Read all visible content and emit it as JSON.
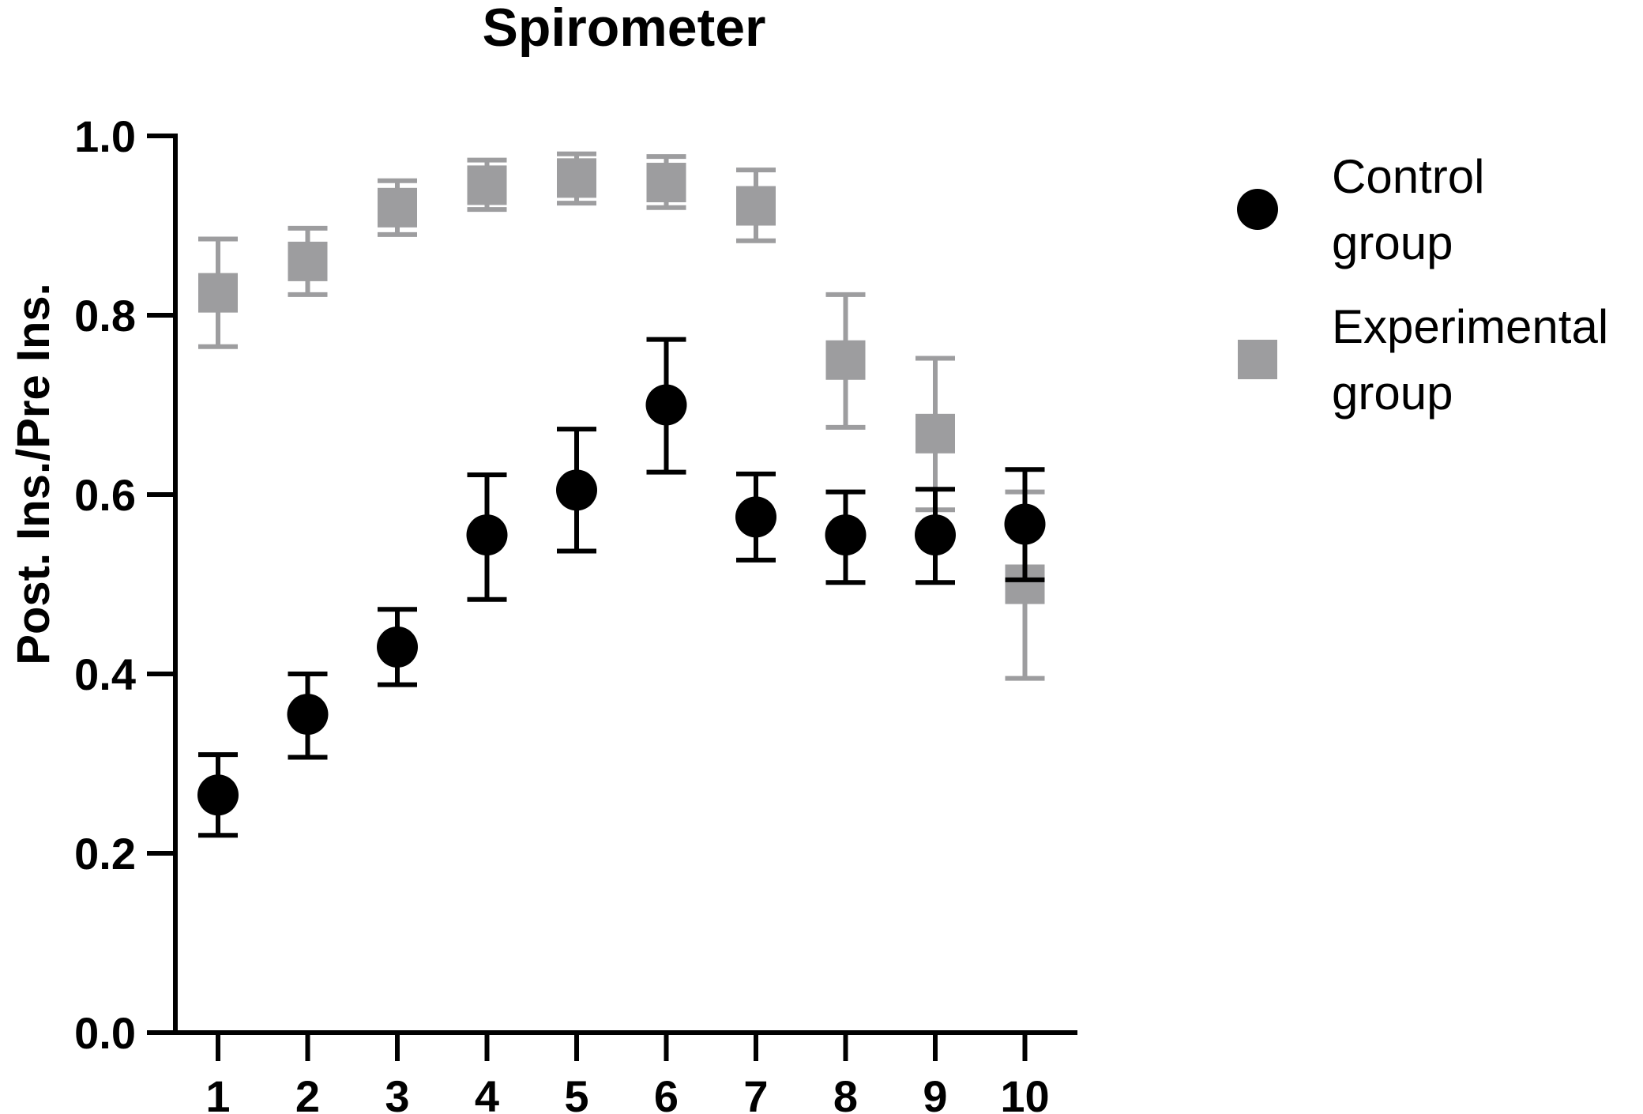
{
  "chart_data": {
    "type": "scatter",
    "title": "Spirometer",
    "xlabel": "",
    "ylabel": "Post. Ins./Pre Ins.",
    "x": [
      1,
      2,
      3,
      4,
      5,
      6,
      7,
      8,
      9,
      10
    ],
    "x_tick_labels": [
      "1",
      "2",
      "3",
      "4",
      "5",
      "6",
      "7",
      "8",
      "9",
      "10"
    ],
    "ylim": [
      0,
      1.0
    ],
    "y_ticks": [
      0.0,
      0.2,
      0.4,
      0.6,
      0.8,
      1.0
    ],
    "y_tick_labels": [
      "0.0",
      "0.2",
      "0.4",
      "0.6",
      "0.8",
      "1.0"
    ],
    "grid": false,
    "legend_position": "right",
    "series": [
      {
        "name_lines": [
          "Control",
          "group"
        ],
        "marker": "circle",
        "color": "#000000",
        "values": [
          0.265,
          0.355,
          0.43,
          0.555,
          0.605,
          0.7,
          0.575,
          0.555,
          0.555,
          0.567
        ],
        "error_low": [
          0.22,
          0.307,
          0.388,
          0.483,
          0.537,
          0.625,
          0.527,
          0.502,
          0.502,
          0.505
        ],
        "error_high": [
          0.31,
          0.4,
          0.472,
          0.622,
          0.673,
          0.773,
          0.623,
          0.603,
          0.606,
          0.628
        ]
      },
      {
        "name_lines": [
          "Experimental",
          "group"
        ],
        "marker": "square",
        "color": "#9d9d9f",
        "values": [
          0.825,
          0.86,
          0.92,
          0.945,
          0.953,
          0.948,
          0.922,
          0.75,
          0.668,
          0.5
        ],
        "error_low": [
          0.765,
          0.823,
          0.89,
          0.918,
          0.925,
          0.92,
          0.883,
          0.675,
          0.583,
          0.395
        ],
        "error_high": [
          0.885,
          0.897,
          0.95,
          0.973,
          0.98,
          0.977,
          0.962,
          0.823,
          0.752,
          0.603
        ]
      }
    ]
  }
}
